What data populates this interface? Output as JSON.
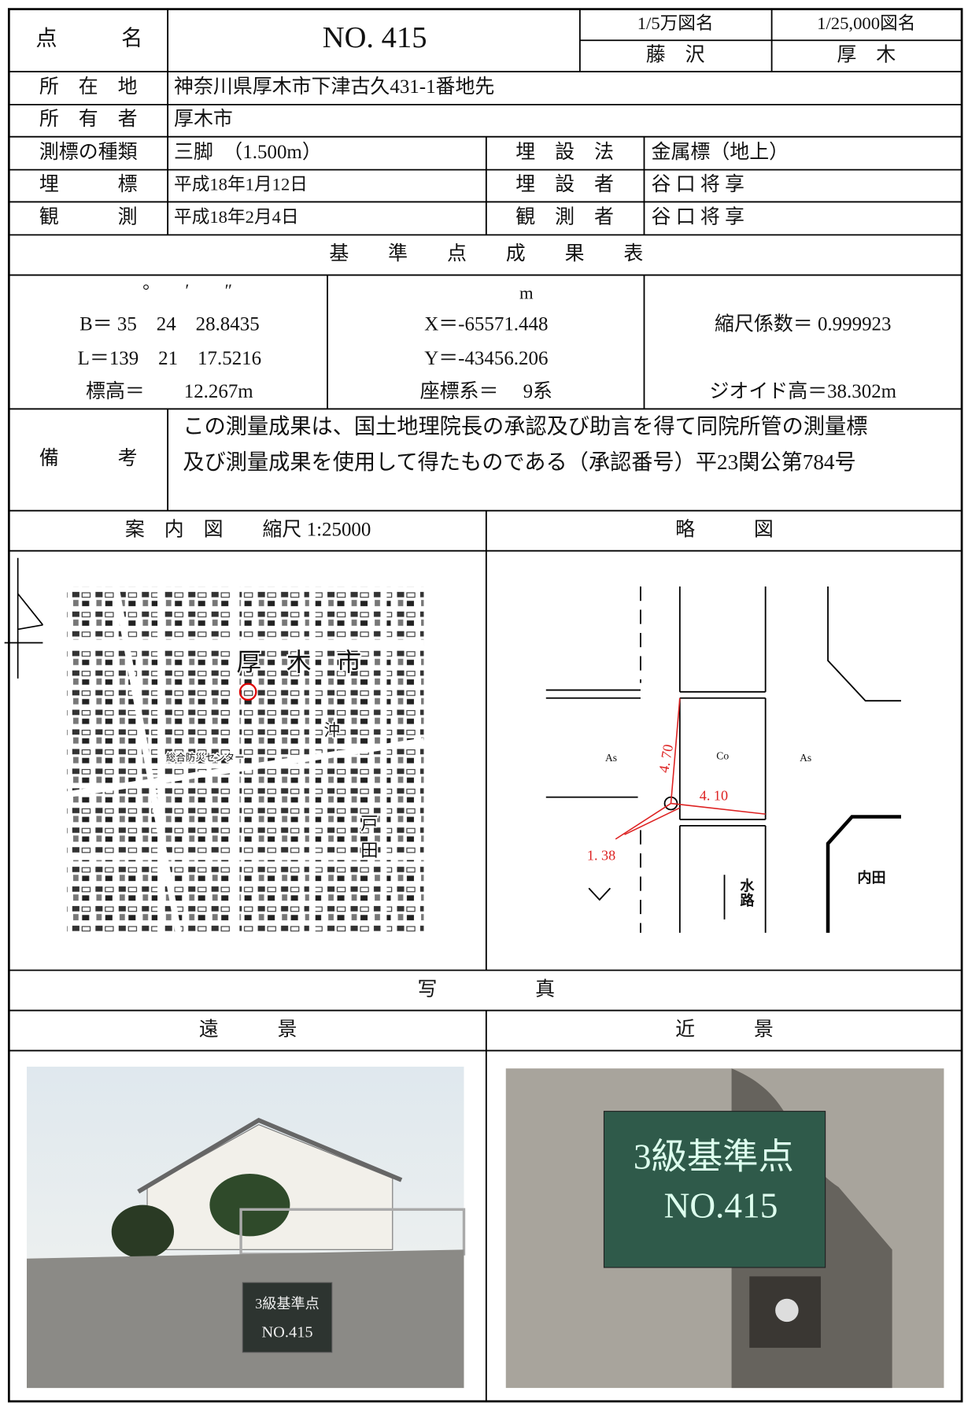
{
  "title_block": {
    "point_name_label": "点　　　名",
    "point_name": "NO. 415",
    "map_50000_label": "1/5万図名",
    "map_50000_name": "藤　沢",
    "map_25000_label": "1/25,000図名",
    "map_25000_name": "厚　木"
  },
  "info": {
    "location_label": "所　在　地",
    "location": "神奈川県厚木市下津古久431-1番地先",
    "owner_label": "所　有　者",
    "owner": "厚木市",
    "marker_type_label": "測標の種類",
    "marker_type": "三脚　（1.500m）",
    "burial_method_label": "埋　設　法",
    "burial_method": "金属標（地上）",
    "burial_label": "埋　　　標",
    "burial_date": "平成18年1月12日",
    "burier_label": "埋　設　者",
    "burier": "谷 口 将 享",
    "observation_label": "観　　　測",
    "observation_date": "平成18年2月4日",
    "observer_label": "観　測　者",
    "observer": "谷 口 将 享"
  },
  "results": {
    "title": "基　　準　　点　　成　　果　　表",
    "angle_units": "°　　′　　″",
    "B": "B＝ 35　24　28.8435",
    "L": "L＝139　21　17.5216",
    "elevation": "標高＝　　12.267m",
    "meter_unit": "m",
    "X": "X＝-65571.448",
    "Y": "Y＝-43456.206",
    "coordinate_system": "座標系＝　 9系",
    "scale_factor": "縮尺係数＝ 0.999923",
    "geoid_height": "ジオイド高＝38.302m"
  },
  "remarks": {
    "label": "備　　　考",
    "lines": [
      "この測量成果は、国土地理院長の承認及び助言を得て同院所管の測量標",
      "及び測量成果を使用して得たものである（承認番号）平23関公第784号"
    ]
  },
  "guide_map": {
    "title": "案　内　図　　縮尺 1:25000",
    "city": "厚　木　市",
    "district_1": "戸",
    "district_2": "田",
    "district_3": "沖",
    "facility": "総合防災センター"
  },
  "sketch": {
    "title": "略　　　図",
    "as_left": "As",
    "co": "Co",
    "as_right": "As",
    "dist_1": "4. 70",
    "dist_2": "4. 10",
    "dist_3": "1. 38",
    "waterway": "水路",
    "place": "内田"
  },
  "photos": {
    "title": "写　　　　　真",
    "far_title": "遠　　　景",
    "near_title": "近　　　景",
    "board_line1": "3級基準点",
    "board_line2": "NO.415"
  }
}
